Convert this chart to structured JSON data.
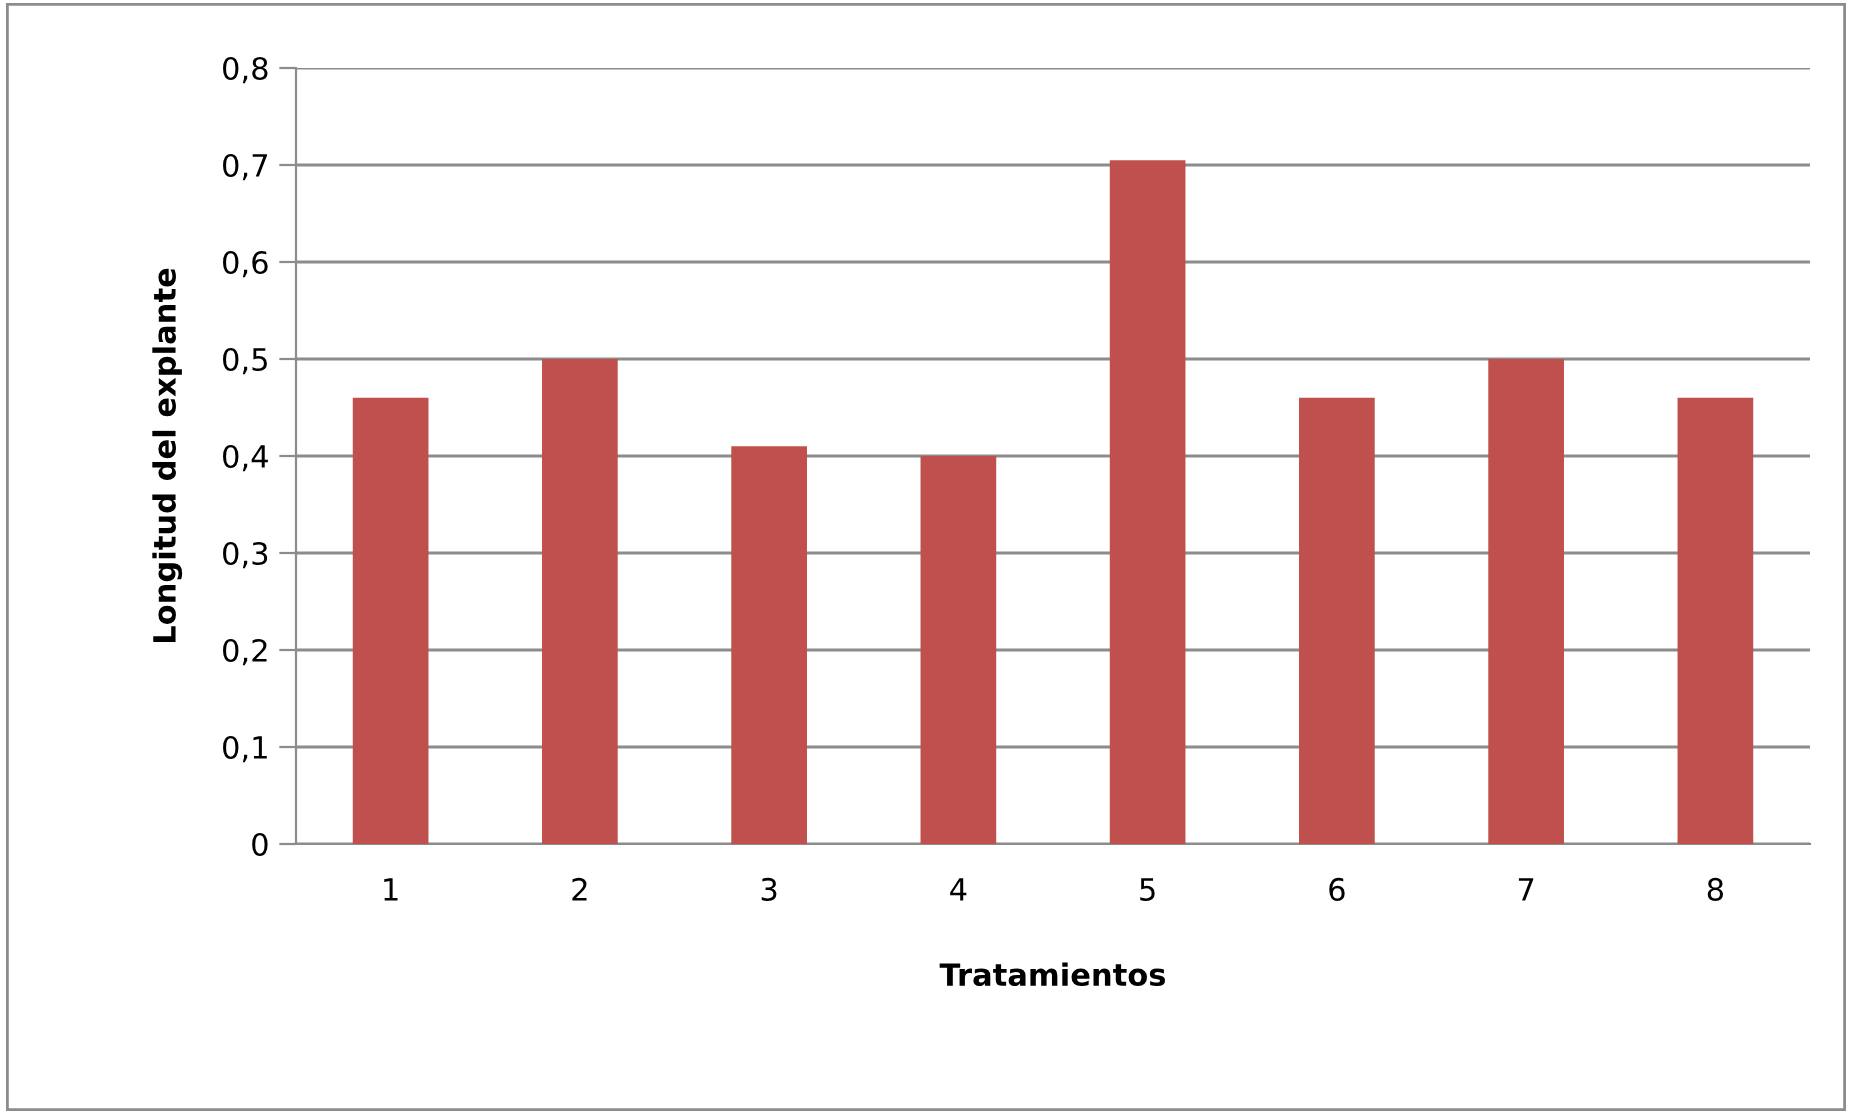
{
  "chart_data": {
    "type": "bar",
    "xlabel": "Tratamientos",
    "ylabel": "Longitud del explante",
    "categories": [
      "1",
      "2",
      "3",
      "4",
      "5",
      "6",
      "7",
      "8"
    ],
    "values": [
      0.46,
      0.5,
      0.41,
      0.4,
      0.705,
      0.46,
      0.5,
      0.46
    ],
    "color": "#c0504d",
    "ylim": [
      0,
      0.8
    ],
    "yticks": [
      0,
      {
        "value": 0.1,
        "label": "0,1"
      },
      {
        "value": 0.2,
        "label": "0,2"
      },
      {
        "value": 0.3,
        "label": "0,3"
      },
      {
        "value": 0.4,
        "label": "0,4"
      },
      {
        "value": 0.5,
        "label": "0,5"
      },
      {
        "value": 0.6,
        "label": "0,6"
      },
      {
        "value": 0.7,
        "label": "0,7"
      },
      {
        "value": 0.8,
        "label": "0,8"
      }
    ],
    "grid": "y",
    "legend": false
  }
}
